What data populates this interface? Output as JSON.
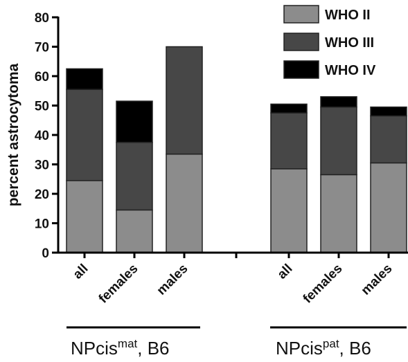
{
  "chart_data": {
    "type": "bar",
    "stacked": true,
    "ylabel": "percent astrocytoma",
    "ylim": [
      0,
      80
    ],
    "yticks": [
      0,
      10,
      20,
      30,
      40,
      50,
      60,
      70,
      80
    ],
    "groups": [
      {
        "label_main": "NPcis",
        "label_sup": "mat",
        "label_tail": ", B6",
        "categories": [
          "all",
          "females",
          "males"
        ]
      },
      {
        "label_main": "NPcis",
        "label_sup": "pat",
        "label_tail": ", B6",
        "categories": [
          "all",
          "females",
          "males"
        ]
      }
    ],
    "series": [
      {
        "name": "WHO II",
        "color": "#8c8c8c",
        "values": [
          24.5,
          14.5,
          33.5,
          28.5,
          26.5,
          30.5
        ]
      },
      {
        "name": "WHO III",
        "color": "#474747",
        "values": [
          31,
          23,
          36.5,
          19,
          23,
          16
        ]
      },
      {
        "name": "WHO IV",
        "color": "#000000",
        "values": [
          7,
          14,
          0,
          3,
          3.5,
          3
        ]
      }
    ],
    "grid": false,
    "legend_position": "top-right"
  }
}
